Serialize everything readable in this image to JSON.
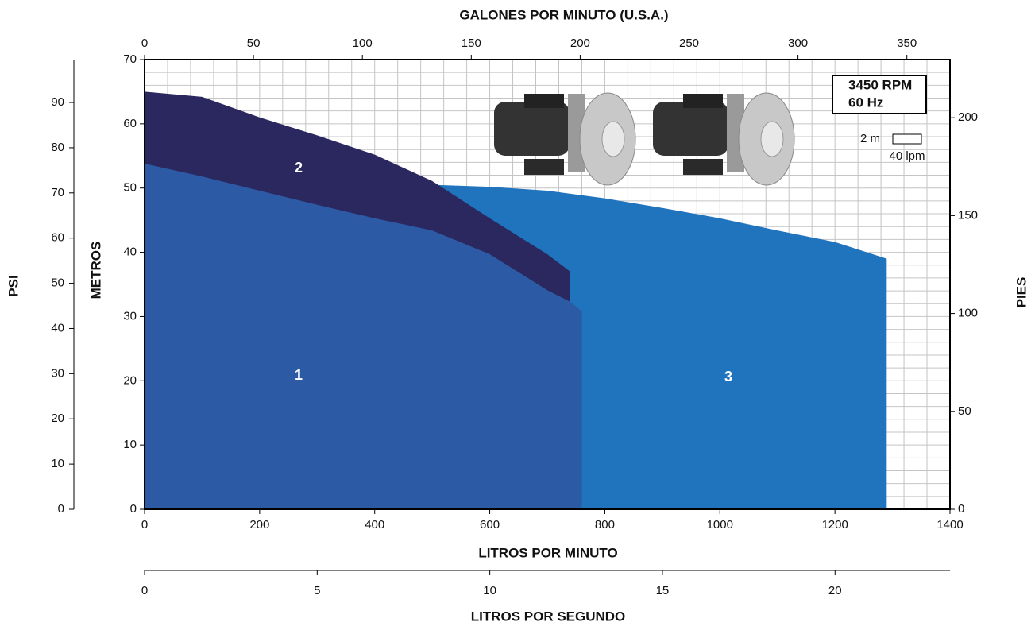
{
  "chart_data": {
    "type": "area",
    "xlabel": "LITROS POR MINUTO",
    "xlim": [
      0,
      1400
    ],
    "xticks": [
      0,
      200,
      400,
      600,
      800,
      1000,
      1200,
      1400
    ],
    "ylabel": "METROS",
    "ylim": [
      0,
      70
    ],
    "yticks": [
      0,
      10,
      20,
      30,
      40,
      50,
      60,
      70
    ],
    "top_axis": {
      "label": "GALONES POR MINUTO (U.S.A.)",
      "lim": [
        0,
        369.8
      ],
      "ticks": [
        0,
        50,
        100,
        150,
        200,
        250,
        300,
        350
      ]
    },
    "bottom_axis2": {
      "label": "LITROS POR SEGUNDO",
      "lim": [
        0,
        23.33
      ],
      "ticks": [
        0,
        5,
        10,
        15,
        20
      ]
    },
    "left_axis2": {
      "label": "PSI",
      "lim": [
        0,
        99.5
      ],
      "ticks": [
        0,
        10,
        20,
        30,
        40,
        50,
        60,
        70,
        80,
        90
      ]
    },
    "right_axis": {
      "label": "PIES",
      "lim": [
        0,
        229.7
      ],
      "ticks": [
        0,
        50,
        100,
        150,
        200
      ]
    },
    "grid": true,
    "grid_x_step": 40,
    "grid_y_step": 2,
    "annotations": {
      "rpm": "3450 RPM",
      "hz": "60 Hz",
      "scale_y": "2 m",
      "scale_x": "40 lpm"
    },
    "series": [
      {
        "name": "1",
        "color": "#2c5aa5",
        "x": [
          0,
          100,
          200,
          300,
          400,
          500,
          600,
          700,
          740,
          760
        ],
        "values": [
          53.8,
          51.8,
          49.6,
          47.4,
          45.3,
          43.4,
          39.7,
          34.1,
          32.3,
          30.8
        ]
      },
      {
        "name": "2",
        "color": "#2a285f",
        "x": [
          0,
          100,
          200,
          300,
          400,
          500,
          600,
          700,
          740
        ],
        "values": [
          65,
          64.2,
          61,
          58.2,
          55.2,
          51.1,
          45.3,
          39.7,
          37
        ]
      },
      {
        "name": "3",
        "color": "#1f74bd",
        "x": [
          0,
          100,
          200,
          300,
          400,
          500,
          600,
          700,
          800,
          900,
          1000,
          1100,
          1200,
          1290
        ],
        "values": [
          52,
          51.9,
          51.7,
          51.4,
          51,
          50.5,
          50.2,
          49.6,
          48.4,
          46.9,
          45.3,
          43.4,
          41.6,
          39
        ]
      }
    ]
  }
}
